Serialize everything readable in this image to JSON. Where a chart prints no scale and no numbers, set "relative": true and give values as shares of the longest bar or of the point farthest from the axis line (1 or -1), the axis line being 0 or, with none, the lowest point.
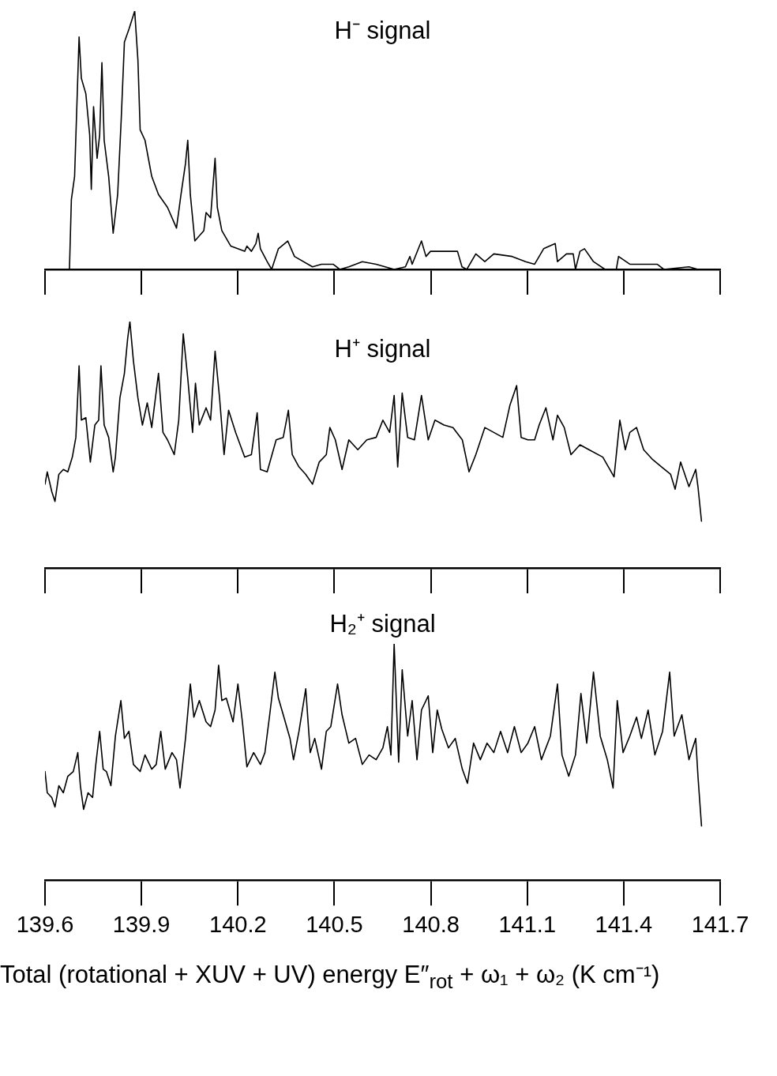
{
  "chart_data": [
    {
      "type": "line",
      "title": "H⁻ signal",
      "relative": true,
      "color": "#000000",
      "tick_labels": false,
      "xlim": [
        139.6,
        141.7
      ],
      "xticks": [
        139.6,
        139.9,
        140.2,
        140.5,
        140.8,
        141.1,
        141.4,
        141.7
      ],
      "x": [
        139.676,
        139.682,
        139.692,
        139.706,
        139.713,
        139.727,
        139.739,
        139.744,
        139.751,
        139.762,
        139.77,
        139.777,
        139.784,
        139.798,
        139.812,
        139.826,
        139.837,
        139.847,
        139.861,
        139.879,
        139.889,
        139.896,
        139.911,
        139.932,
        139.953,
        139.981,
        140.009,
        140.023,
        140.037,
        140.044,
        140.052,
        140.066,
        140.094,
        140.101,
        140.115,
        140.129,
        140.136,
        140.15,
        140.178,
        140.221,
        140.228,
        140.242,
        140.256,
        140.263,
        140.27,
        140.291,
        140.305,
        140.326,
        140.355,
        140.376,
        140.432,
        140.46,
        140.496,
        140.517,
        140.545,
        140.587,
        140.63,
        140.686,
        140.721,
        140.735,
        140.742,
        140.771,
        140.785,
        140.799,
        140.827,
        140.883,
        140.897,
        140.912,
        140.94,
        140.968,
        140.996,
        141.053,
        141.095,
        141.123,
        141.151,
        141.187,
        141.194,
        141.222,
        141.243,
        141.25,
        141.264,
        141.278,
        141.306,
        141.342,
        141.377,
        141.384,
        141.419,
        141.476,
        141.504,
        141.525,
        141.603,
        141.631,
        141.7
      ],
      "values": [
        0,
        0.27,
        0.36,
        0.9,
        0.74,
        0.68,
        0.52,
        0.31,
        0.63,
        0.43,
        0.52,
        0.8,
        0.5,
        0.36,
        0.14,
        0.29,
        0.58,
        0.88,
        0.93,
        1.0,
        0.81,
        0.54,
        0.5,
        0.36,
        0.29,
        0.24,
        0.16,
        0.29,
        0.41,
        0.5,
        0.29,
        0.11,
        0.15,
        0.22,
        0.2,
        0.43,
        0.24,
        0.15,
        0.09,
        0.07,
        0.09,
        0.07,
        0.1,
        0.14,
        0.08,
        0.03,
        0.0,
        0.08,
        0.11,
        0.05,
        0.01,
        0.02,
        0.02,
        0.0,
        0.01,
        0.03,
        0.02,
        0.0,
        0.01,
        0.05,
        0.02,
        0.11,
        0.05,
        0.07,
        0.07,
        0.07,
        0.01,
        0.0,
        0.06,
        0.03,
        0.06,
        0.05,
        0.03,
        0.02,
        0.08,
        0.1,
        0.03,
        0.06,
        0.06,
        0.0,
        0.07,
        0.08,
        0.03,
        0.0,
        0.0,
        0.05,
        0.02,
        0.02,
        0.02,
        0,
        0.01,
        0,
        0
      ]
    },
    {
      "type": "line",
      "title": "H⁺ signal",
      "relative": true,
      "color": "#000000",
      "tick_labels": false,
      "xlim": [
        139.6,
        141.7
      ],
      "xticks": [
        139.6,
        139.9,
        140.2,
        140.5,
        140.8,
        141.1,
        141.4,
        141.7
      ],
      "x": [
        139.6,
        139.607,
        139.621,
        139.631,
        139.643,
        139.657,
        139.671,
        139.685,
        139.696,
        139.706,
        139.713,
        139.727,
        139.741,
        139.755,
        139.767,
        139.774,
        139.784,
        139.798,
        139.812,
        139.819,
        139.833,
        139.847,
        139.857,
        139.864,
        139.875,
        139.889,
        139.903,
        139.918,
        139.932,
        139.953,
        139.967,
        139.981,
        140.002,
        140.016,
        140.03,
        140.044,
        140.059,
        140.068,
        140.08,
        140.101,
        140.115,
        140.129,
        140.143,
        140.157,
        140.171,
        140.193,
        140.221,
        140.242,
        140.26,
        140.27,
        140.291,
        140.319,
        140.341,
        140.357,
        140.369,
        140.39,
        140.411,
        140.432,
        140.453,
        140.475,
        140.486,
        140.503,
        140.524,
        140.545,
        140.573,
        140.601,
        140.63,
        140.651,
        140.672,
        140.686,
        140.697,
        140.711,
        140.728,
        140.749,
        140.771,
        140.792,
        140.813,
        140.841,
        140.869,
        140.898,
        140.919,
        140.94,
        140.968,
        140.996,
        141.024,
        141.046,
        141.067,
        141.081,
        141.102,
        141.123,
        141.137,
        141.158,
        141.18,
        141.194,
        141.215,
        141.236,
        141.264,
        141.292,
        141.335,
        141.37,
        141.388,
        141.405,
        141.419,
        141.44,
        141.462,
        141.49,
        141.518,
        141.546,
        141.56,
        141.577,
        141.603,
        141.624,
        141.631,
        141.642
      ],
      "values": [
        0.34,
        0.39,
        0.31,
        0.27,
        0.38,
        0.4,
        0.39,
        0.45,
        0.53,
        0.82,
        0.6,
        0.61,
        0.43,
        0.58,
        0.6,
        0.82,
        0.58,
        0.53,
        0.39,
        0.45,
        0.69,
        0.79,
        0.93,
        1.0,
        0.84,
        0.69,
        0.58,
        0.67,
        0.57,
        0.79,
        0.55,
        0.52,
        0.46,
        0.6,
        0.95,
        0.77,
        0.55,
        0.75,
        0.58,
        0.65,
        0.6,
        0.88,
        0.69,
        0.46,
        0.64,
        0.55,
        0.45,
        0.46,
        0.63,
        0.4,
        0.39,
        0.52,
        0.53,
        0.64,
        0.46,
        0.41,
        0.38,
        0.34,
        0.43,
        0.46,
        0.57,
        0.52,
        0.4,
        0.52,
        0.48,
        0.52,
        0.53,
        0.6,
        0.55,
        0.7,
        0.41,
        0.71,
        0.53,
        0.52,
        0.7,
        0.52,
        0.6,
        0.58,
        0.57,
        0.52,
        0.39,
        0.46,
        0.57,
        0.55,
        0.53,
        0.66,
        0.74,
        0.53,
        0.52,
        0.52,
        0.58,
        0.65,
        0.52,
        0.62,
        0.57,
        0.46,
        0.5,
        0.48,
        0.45,
        0.37,
        0.6,
        0.48,
        0.55,
        0.57,
        0.48,
        0.44,
        0.41,
        0.38,
        0.32,
        0.43,
        0.33,
        0.4,
        0.33,
        0.19
      ]
    },
    {
      "type": "line",
      "title": "H₂⁺ signal",
      "relative": true,
      "color": "#000000",
      "tick_labels": "x",
      "xlabel": "Total (rotational + XUV + UV) energy E″$_{rot}$ + ω₁ + ω₂ (K cm⁻¹)",
      "xlim": [
        139.6,
        141.7
      ],
      "xticks": [
        139.6,
        139.9,
        140.2,
        140.5,
        140.8,
        141.1,
        141.4,
        141.7
      ],
      "x": [
        139.6,
        139.607,
        139.621,
        139.631,
        139.643,
        139.657,
        139.671,
        139.688,
        139.702,
        139.71,
        139.72,
        139.734,
        139.748,
        139.758,
        139.77,
        139.781,
        139.791,
        139.805,
        139.819,
        139.836,
        139.847,
        139.861,
        139.875,
        139.896,
        139.911,
        139.932,
        139.946,
        139.96,
        139.974,
        139.995,
        140.009,
        140.02,
        140.037,
        140.052,
        140.063,
        140.08,
        140.101,
        140.115,
        140.129,
        140.14,
        140.15,
        140.164,
        140.185,
        140.2,
        140.214,
        140.228,
        140.249,
        140.27,
        140.284,
        140.298,
        140.315,
        140.326,
        140.341,
        140.362,
        140.373,
        140.39,
        140.411,
        140.425,
        140.439,
        140.46,
        140.475,
        140.489,
        140.51,
        140.524,
        140.545,
        140.566,
        140.587,
        140.608,
        140.63,
        140.651,
        140.665,
        140.676,
        140.686,
        140.7,
        140.711,
        140.728,
        140.742,
        140.757,
        140.771,
        140.792,
        140.806,
        140.82,
        140.834,
        140.855,
        140.876,
        140.898,
        140.914,
        140.933,
        140.954,
        140.975,
        140.996,
        141.017,
        141.039,
        141.06,
        141.081,
        141.102,
        141.123,
        141.144,
        141.172,
        141.194,
        141.208,
        141.229,
        141.25,
        141.267,
        141.285,
        141.306,
        141.327,
        141.349,
        141.367,
        141.38,
        141.398,
        141.419,
        141.44,
        141.455,
        141.476,
        141.497,
        141.521,
        141.543,
        141.557,
        141.581,
        141.603,
        141.624,
        141.631,
        141.642
      ],
      "values": [
        0.46,
        0.37,
        0.35,
        0.31,
        0.4,
        0.37,
        0.44,
        0.46,
        0.54,
        0.4,
        0.3,
        0.37,
        0.35,
        0.49,
        0.63,
        0.47,
        0.46,
        0.4,
        0.61,
        0.76,
        0.6,
        0.63,
        0.49,
        0.46,
        0.53,
        0.47,
        0.49,
        0.63,
        0.47,
        0.54,
        0.51,
        0.39,
        0.6,
        0.83,
        0.69,
        0.76,
        0.67,
        0.65,
        0.72,
        0.91,
        0.76,
        0.77,
        0.67,
        0.83,
        0.67,
        0.48,
        0.54,
        0.49,
        0.54,
        0.69,
        0.88,
        0.77,
        0.7,
        0.6,
        0.51,
        0.63,
        0.81,
        0.54,
        0.6,
        0.47,
        0.63,
        0.65,
        0.83,
        0.7,
        0.58,
        0.6,
        0.49,
        0.53,
        0.51,
        0.56,
        0.65,
        0.53,
        1.0,
        0.5,
        0.89,
        0.61,
        0.76,
        0.51,
        0.72,
        0.78,
        0.54,
        0.72,
        0.64,
        0.56,
        0.6,
        0.47,
        0.41,
        0.58,
        0.51,
        0.58,
        0.54,
        0.63,
        0.54,
        0.65,
        0.54,
        0.58,
        0.65,
        0.51,
        0.61,
        0.83,
        0.53,
        0.44,
        0.53,
        0.79,
        0.58,
        0.88,
        0.61,
        0.51,
        0.39,
        0.76,
        0.54,
        0.61,
        0.69,
        0.6,
        0.72,
        0.53,
        0.63,
        0.88,
        0.61,
        0.7,
        0.51,
        0.6,
        0.44,
        0.23
      ]
    }
  ]
}
